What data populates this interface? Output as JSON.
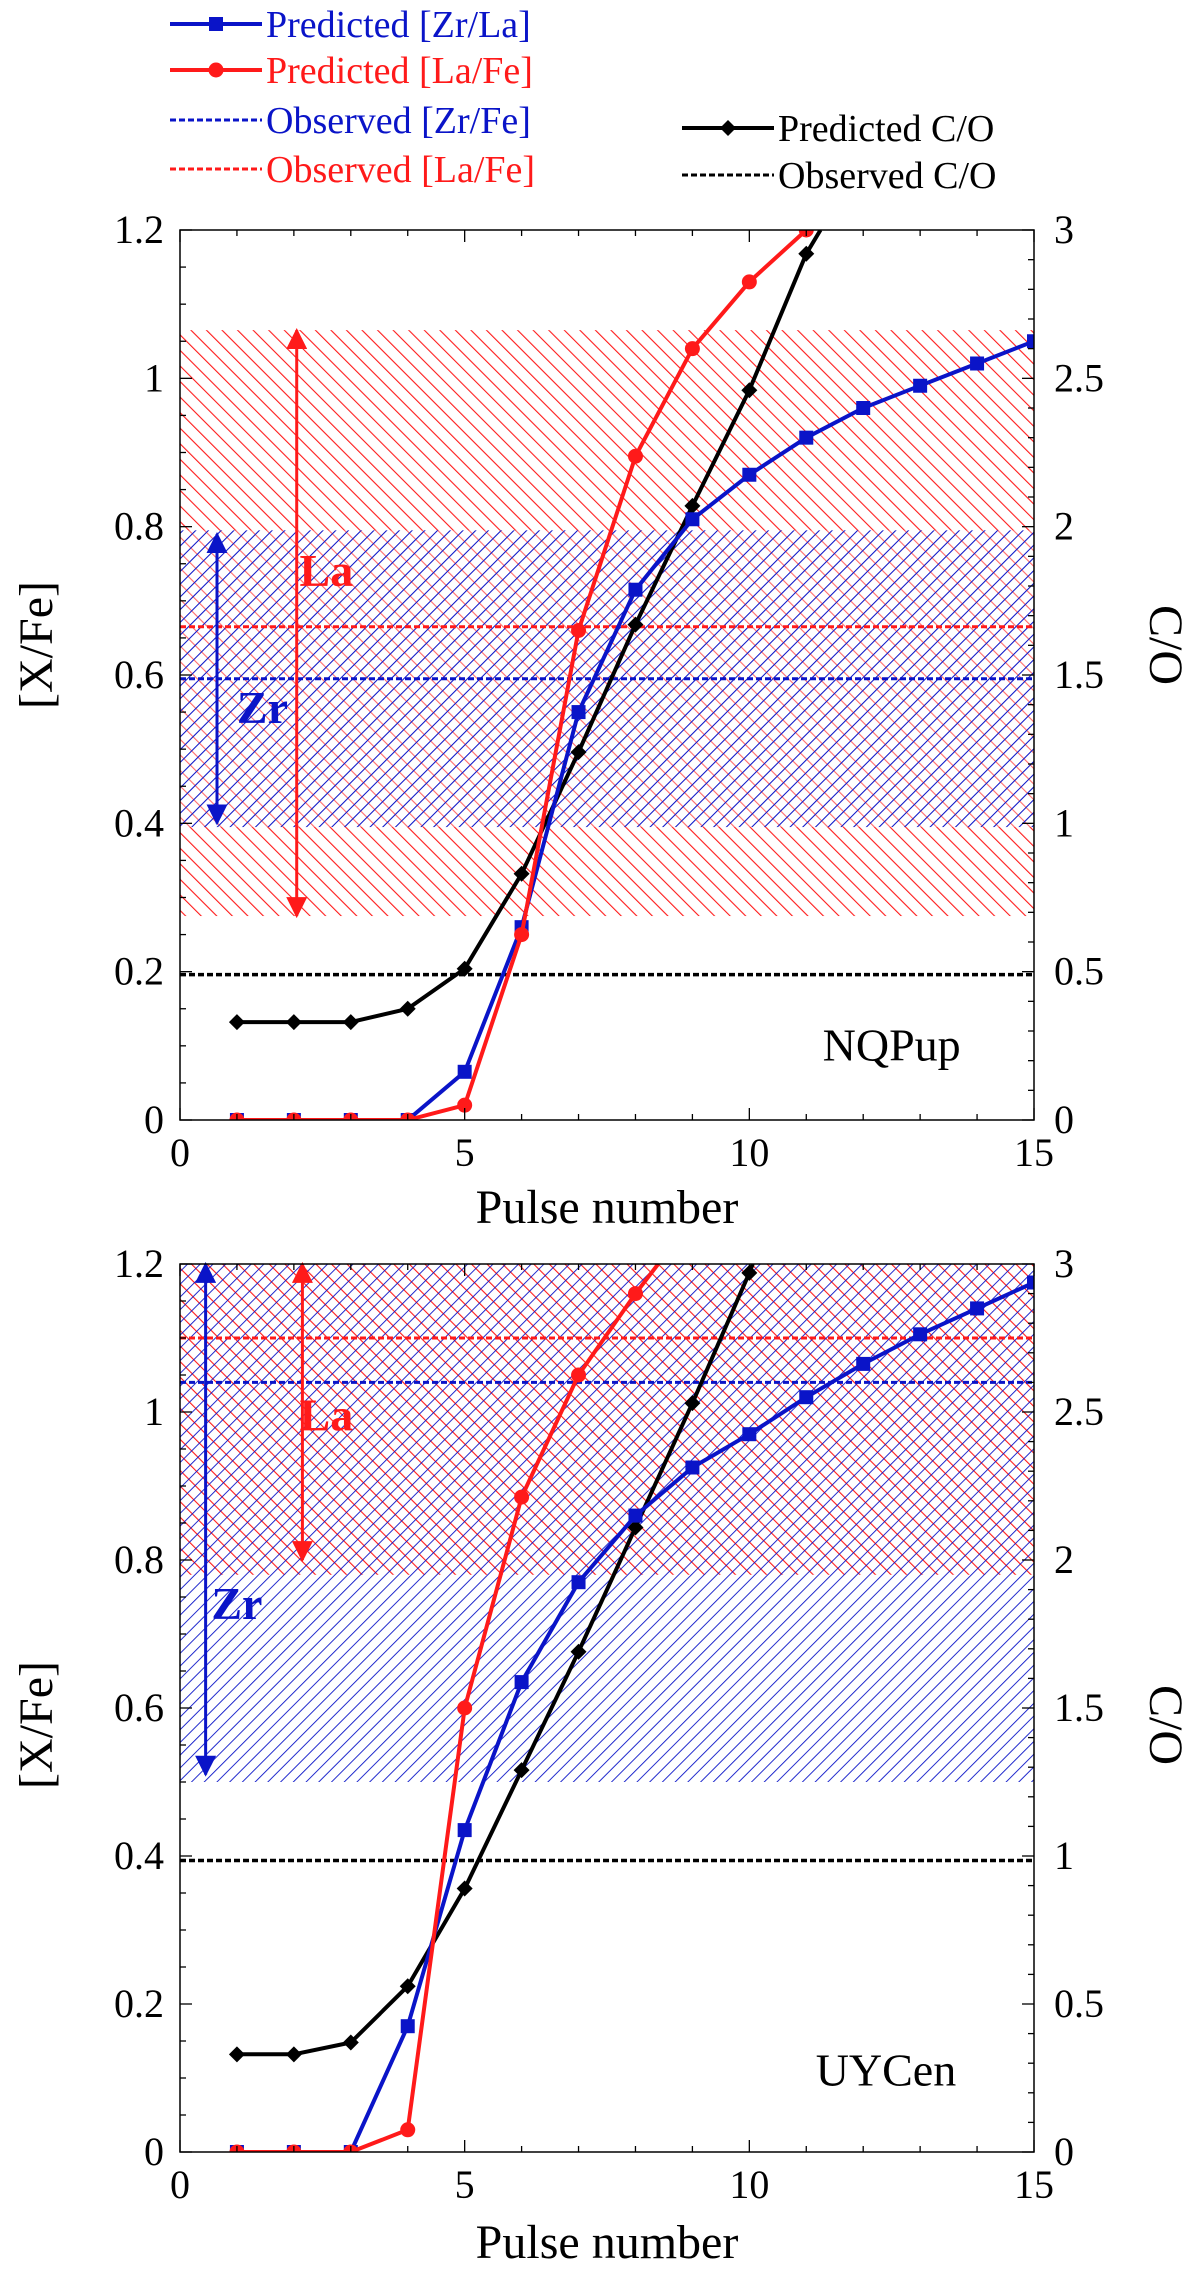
{
  "legend": {
    "items": [
      {
        "label": "Predicted [Zr/La]",
        "color": "#0a14c8",
        "style": "line-square"
      },
      {
        "label": "Predicted [La/Fe]",
        "color": "#ff1a1a",
        "style": "line-circle"
      },
      {
        "label": "Observed [Zr/Fe]",
        "color": "#0a14c8",
        "style": "dashed"
      },
      {
        "label": "Observed [La/Fe]",
        "color": "#ff1a1a",
        "style": "dashed"
      },
      {
        "label": "Predicted C/O",
        "color": "#000000",
        "style": "line-diamond"
      },
      {
        "label": "Observed C/O",
        "color": "#000000",
        "style": "dashed"
      }
    ]
  },
  "colors": {
    "blue": "#0a14c8",
    "red": "#ff1a1a",
    "black": "#000000"
  },
  "chart_data": [
    {
      "type": "line",
      "star": "NQPup",
      "xlabel": "Pulse number",
      "ylabel": "[X/Fe]",
      "y2label": "C/O",
      "xlim": [
        0,
        15
      ],
      "ylim": [
        0,
        1.2
      ],
      "y2lim": [
        0,
        3
      ],
      "xticks": [
        "0",
        "5",
        "10",
        "15"
      ],
      "yticks": [
        "0",
        "0.2",
        "0.4",
        "0.6",
        "0.8",
        "1",
        "1.2"
      ],
      "y2ticks": [
        "0",
        "0.5",
        "1",
        "1.5",
        "2",
        "2.5",
        "3"
      ],
      "series": [
        {
          "name": "Predicted [Zr/La]",
          "axis": "left",
          "color": "#0a14c8",
          "marker": "square",
          "x": [
            1,
            2,
            3,
            4,
            5,
            6,
            7,
            8,
            9,
            10,
            11,
            12,
            13,
            14,
            15
          ],
          "y": [
            0,
            0,
            0,
            0,
            0.065,
            0.26,
            0.55,
            0.715,
            0.81,
            0.87,
            0.92,
            0.96,
            0.99,
            1.02,
            1.05
          ]
        },
        {
          "name": "Predicted [La/Fe]",
          "axis": "left",
          "color": "#ff1a1a",
          "marker": "circle",
          "x": [
            1,
            2,
            3,
            4,
            5,
            6,
            7,
            8,
            9,
            10,
            11
          ],
          "y": [
            0,
            0,
            0,
            0,
            0.02,
            0.25,
            0.66,
            0.895,
            1.04,
            1.13,
            1.2
          ]
        },
        {
          "name": "Predicted C/O",
          "axis": "right",
          "color": "#000000",
          "marker": "diamond",
          "x": [
            1,
            2,
            3,
            4,
            5,
            6,
            7,
            8,
            9,
            10,
            11,
            11.25
          ],
          "y": [
            0.33,
            0.33,
            0.33,
            0.375,
            0.51,
            0.83,
            1.24,
            1.67,
            2.07,
            2.46,
            2.92,
            3.0
          ],
          "marker_count": 11
        }
      ],
      "observed": [
        {
          "name": "Observed [Zr/Fe]",
          "axis": "left",
          "color": "#0a14c8",
          "value": 0.595,
          "band": [
            0.395,
            0.795
          ]
        },
        {
          "name": "Observed [La/Fe]",
          "axis": "left",
          "color": "#ff1a1a",
          "value": 0.665,
          "band": [
            0.275,
            1.065
          ]
        },
        {
          "name": "Observed C/O",
          "axis": "right",
          "color": "#000000",
          "value": 0.49
        }
      ],
      "annotations": [
        {
          "text": "La",
          "color": "#ff1a1a",
          "x": 2.1,
          "y": 0.72
        },
        {
          "text": "Zr",
          "color": "#0a14c8",
          "x": 1.0,
          "y": 0.535
        },
        {
          "text": "NQPup",
          "color": "#000000",
          "x": 12.5,
          "y": 0.08
        }
      ],
      "arrows": [
        {
          "color": "#ff1a1a",
          "x": 2.05,
          "y_from": 0.275,
          "y_to": 1.065
        },
        {
          "color": "#0a14c8",
          "x": 0.65,
          "y_from": 0.4,
          "y_to": 0.79
        }
      ]
    },
    {
      "type": "line",
      "star": "UYCen",
      "xlabel": "Pulse number",
      "ylabel": "[X/Fe]",
      "y2label": "C/O",
      "xlim": [
        0,
        15
      ],
      "ylim": [
        0,
        1.2
      ],
      "y2lim": [
        0,
        3
      ],
      "xticks": [
        "0",
        "5",
        "10",
        "15"
      ],
      "yticks": [
        "0",
        "0.2",
        "0.4",
        "0.6",
        "0.8",
        "1",
        "1.2"
      ],
      "y2ticks": [
        "0",
        "0.5",
        "1",
        "1.5",
        "2",
        "2.5",
        "3"
      ],
      "series": [
        {
          "name": "Predicted [Zr/La]",
          "axis": "left",
          "color": "#0a14c8",
          "marker": "square",
          "x": [
            1,
            2,
            3,
            4,
            5,
            6,
            7,
            8,
            9,
            10,
            11,
            12,
            13,
            14,
            15
          ],
          "y": [
            0,
            0,
            0,
            0.17,
            0.435,
            0.635,
            0.77,
            0.86,
            0.925,
            0.97,
            1.02,
            1.065,
            1.105,
            1.14,
            1.175
          ]
        },
        {
          "name": "Predicted [La/Fe]",
          "axis": "left",
          "color": "#ff1a1a",
          "marker": "circle",
          "x": [
            1,
            2,
            3,
            4,
            5,
            6,
            7,
            8,
            8.4
          ],
          "y": [
            0,
            0,
            0,
            0.03,
            0.6,
            0.885,
            1.05,
            1.16,
            1.2
          ],
          "marker_count": 8
        },
        {
          "name": "Predicted C/O",
          "axis": "right",
          "color": "#000000",
          "marker": "diamond",
          "x": [
            1,
            2,
            3,
            4,
            5,
            6,
            7,
            8,
            9,
            10,
            10.06
          ],
          "y": [
            0.33,
            0.33,
            0.37,
            0.56,
            0.89,
            1.29,
            1.69,
            2.11,
            2.53,
            2.97,
            3.0
          ],
          "marker_count": 10
        }
      ],
      "observed": [
        {
          "name": "Observed [Zr/Fe]",
          "axis": "left",
          "color": "#0a14c8",
          "value": 1.04,
          "band": [
            0.5,
            1.2
          ]
        },
        {
          "name": "Observed [La/Fe]",
          "axis": "left",
          "color": "#ff1a1a",
          "value": 1.1,
          "band": [
            0.78,
            1.2
          ]
        },
        {
          "name": "Observed C/O",
          "axis": "right",
          "color": "#000000",
          "value": 0.985
        }
      ],
      "annotations": [
        {
          "text": "La",
          "color": "#ff1a1a",
          "x": 2.1,
          "y": 0.975
        },
        {
          "text": "Zr",
          "color": "#0a14c8",
          "x": 0.55,
          "y": 0.72
        },
        {
          "text": "UYCen",
          "color": "#000000",
          "x": 12.4,
          "y": 0.09
        }
      ],
      "arrows": [
        {
          "color": "#ff1a1a",
          "x": 2.15,
          "y_from": 0.8,
          "y_to": 1.2
        },
        {
          "color": "#0a14c8",
          "x": 0.45,
          "y_from": 0.51,
          "y_to": 1.2
        }
      ]
    }
  ]
}
